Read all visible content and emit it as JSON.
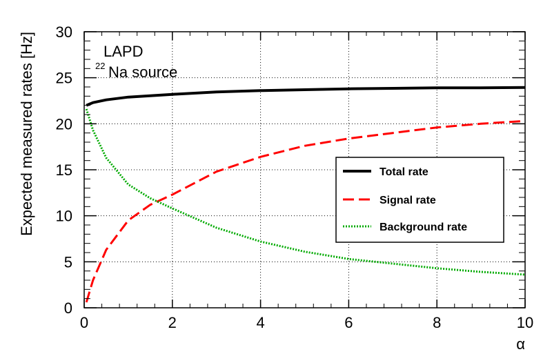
{
  "chart_data": {
    "type": "line",
    "xlabel": "α",
    "ylabel": "Expected measured rates [Hz]",
    "xlim": [
      0,
      10
    ],
    "ylim": [
      0,
      30
    ],
    "x_ticks": [
      "0",
      "2",
      "4",
      "6",
      "8",
      "10"
    ],
    "y_ticks": [
      "0",
      "5",
      "10",
      "15",
      "20",
      "25",
      "30"
    ],
    "grid": true,
    "legend_position": "right",
    "annotations": [
      "LAPD",
      "Na source"
    ],
    "annotation_superscript": "22",
    "x": [
      0.05,
      0.2,
      0.5,
      1,
      1.5,
      2,
      3,
      4,
      5,
      6,
      7,
      8,
      9,
      10
    ],
    "series": [
      {
        "name": "Total rate",
        "color": "#000000",
        "style": "solid",
        "values": [
          22.0,
          22.3,
          22.6,
          22.9,
          23.05,
          23.2,
          23.45,
          23.6,
          23.7,
          23.8,
          23.85,
          23.9,
          23.9,
          23.95
        ]
      },
      {
        "name": "Signal rate",
        "color": "#ff0000",
        "style": "dashed",
        "values": [
          0.6,
          3.0,
          6.3,
          9.5,
          11.2,
          12.3,
          14.8,
          16.4,
          17.6,
          18.4,
          19.0,
          19.6,
          20.0,
          20.3
        ]
      },
      {
        "name": "Background rate",
        "color": "#00aa00",
        "style": "dotted",
        "values": [
          21.6,
          19.3,
          16.3,
          13.4,
          11.9,
          10.8,
          8.7,
          7.2,
          6.1,
          5.3,
          4.8,
          4.3,
          3.9,
          3.6
        ]
      }
    ]
  }
}
